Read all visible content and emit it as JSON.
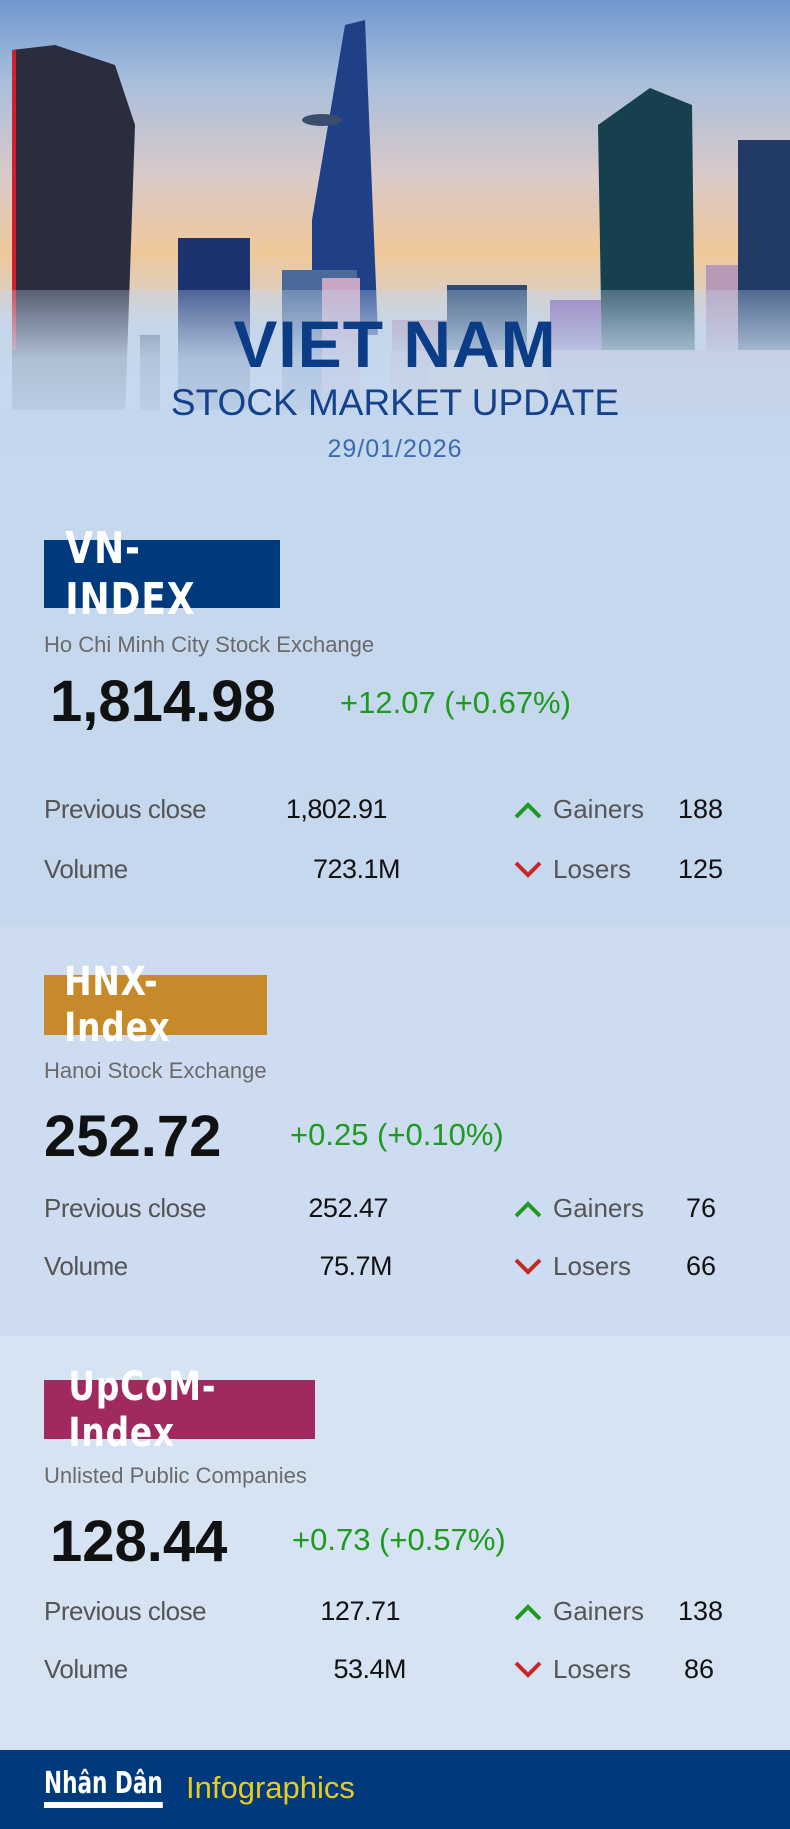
{
  "header": {
    "title": "VIET NAM",
    "subtitle": "STOCK MARKET UPDATE",
    "date": "29/01/2026"
  },
  "colors": {
    "navy": "#003a7d",
    "hnx": "#c68a2a",
    "upcom": "#a0295f",
    "gain": "#1e9a1e",
    "loss": "#c62828"
  },
  "indices": [
    {
      "name": "VN-INDEX",
      "exchange": "Ho Chi Minh City Stock Exchange",
      "value": "1,814.98",
      "change": "+12.07 (+0.67%)",
      "prev_label": "Previous close",
      "prev": "1,802.91",
      "vol_label": "Volume",
      "volume": "723.1M",
      "gainers_label": "Gainers",
      "gainers": "188",
      "losers_label": "Losers",
      "losers": "125"
    },
    {
      "name": "HNX-Index",
      "exchange": "Hanoi Stock Exchange",
      "value": "252.72",
      "change": "+0.25 (+0.10%)",
      "prev_label": "Previous close",
      "prev": "252.47",
      "vol_label": "Volume",
      "volume": "75.7M",
      "gainers_label": "Gainers",
      "gainers": "76",
      "losers_label": "Losers",
      "losers": "66"
    },
    {
      "name": "UpCoM-Index",
      "exchange": "Unlisted Public Companies",
      "value": "128.44",
      "change": "+0.73 (+0.57%)",
      "prev_label": "Previous close",
      "prev": "127.71",
      "vol_label": "Volume",
      "volume": "53.4M",
      "gainers_label": "Gainers",
      "gainers": "138",
      "losers_label": "Losers",
      "losers": "86"
    }
  ],
  "footer": {
    "logo": "Nhân Dân",
    "label": "Infographics"
  }
}
